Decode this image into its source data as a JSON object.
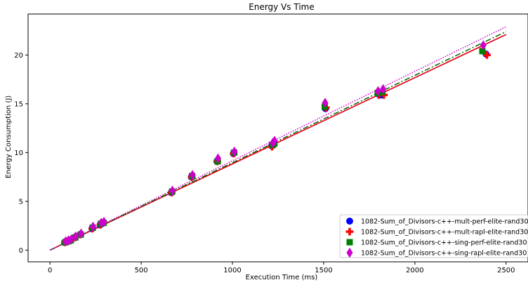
{
  "chart_data": {
    "type": "scatter",
    "title": "Energy Vs Time",
    "xlabel": "Execution Time (ms)",
    "ylabel": "Energy Consumption (J)",
    "xlim": [
      -120,
      2620
    ],
    "ylim": [
      -1.2,
      24.2
    ],
    "xticks": [
      0,
      500,
      1000,
      1500,
      2000,
      2500
    ],
    "yticks": [
      0,
      5,
      10,
      15,
      20
    ],
    "legend_position": "bottom-right",
    "grid": false,
    "series": [
      {
        "name": "1082-Sum_of_Divisors-c++-mult-perf-elite-rand30",
        "color": "#0000ff",
        "marker": "circle",
        "points": [
          [
            80,
            0.8
          ],
          [
            95,
            0.9
          ],
          [
            110,
            1.0
          ],
          [
            135,
            1.3
          ],
          [
            165,
            1.6
          ],
          [
            230,
            2.2
          ],
          [
            275,
            2.6
          ],
          [
            290,
            2.8
          ],
          [
            665,
            5.9
          ],
          [
            775,
            7.5
          ],
          [
            915,
            9.1
          ],
          [
            1005,
            9.9
          ],
          [
            1215,
            10.7
          ],
          [
            1225,
            10.9
          ],
          [
            1510,
            14.5
          ],
          [
            1800,
            16.0
          ],
          [
            1815,
            15.9
          ],
          [
            2390,
            20.1
          ]
        ],
        "fit": [
          [
            0,
            0
          ],
          [
            2500,
            22.1
          ]
        ],
        "fit_color": "#0000ff",
        "fit_dash": ""
      },
      {
        "name": "1082-Sum_of_Divisors-c++-mult-rapl-elite-rand30",
        "color": "#ff0000",
        "marker": "plus",
        "points": [
          [
            82,
            0.8
          ],
          [
            97,
            0.9
          ],
          [
            112,
            1.0
          ],
          [
            137,
            1.3
          ],
          [
            167,
            1.6
          ],
          [
            232,
            2.2
          ],
          [
            277,
            2.6
          ],
          [
            292,
            2.8
          ],
          [
            667,
            5.9
          ],
          [
            777,
            7.5
          ],
          [
            917,
            9.1
          ],
          [
            1007,
            9.9
          ],
          [
            1217,
            10.6
          ],
          [
            1227,
            10.8
          ],
          [
            1512,
            14.6
          ],
          [
            1802,
            15.9
          ],
          [
            1830,
            15.9
          ],
          [
            2395,
            20.0
          ]
        ],
        "fit": [
          [
            0,
            0
          ],
          [
            2500,
            22.1
          ]
        ],
        "fit_color": "#ff0000",
        "fit_dash": ""
      },
      {
        "name": "1082-Sum_of_Divisors-c++-sing-perf-elite-rand30",
        "color": "#008000",
        "marker": "square",
        "points": [
          [
            84,
            0.8
          ],
          [
            99,
            0.9
          ],
          [
            114,
            1.0
          ],
          [
            139,
            1.3
          ],
          [
            169,
            1.6
          ],
          [
            234,
            2.3
          ],
          [
            279,
            2.7
          ],
          [
            294,
            2.8
          ],
          [
            669,
            6.0
          ],
          [
            779,
            7.6
          ],
          [
            919,
            9.1
          ],
          [
            1009,
            10.0
          ],
          [
            1219,
            10.8
          ],
          [
            1229,
            10.9
          ],
          [
            1506,
            14.7
          ],
          [
            1796,
            16.1
          ],
          [
            1822,
            16.2
          ],
          [
            2370,
            20.4
          ]
        ],
        "fit": [
          [
            0,
            0
          ],
          [
            2500,
            22.4
          ]
        ],
        "fit_color": "#006400",
        "fit_dash": "8,3,2,3"
      },
      {
        "name": "1082-Sum_of_Divisors-c++-sing-rapl-elite-rand30",
        "color": "#cc00cc",
        "marker": "diamond",
        "points": [
          [
            86,
            0.9
          ],
          [
            101,
            1.0
          ],
          [
            116,
            1.1
          ],
          [
            141,
            1.4
          ],
          [
            171,
            1.7
          ],
          [
            236,
            2.4
          ],
          [
            281,
            2.8
          ],
          [
            296,
            2.9
          ],
          [
            671,
            6.1
          ],
          [
            781,
            7.7
          ],
          [
            921,
            9.4
          ],
          [
            1011,
            10.1
          ],
          [
            1221,
            11.0
          ],
          [
            1231,
            11.2
          ],
          [
            1508,
            15.1
          ],
          [
            1798,
            16.3
          ],
          [
            1826,
            16.5
          ],
          [
            2375,
            21.0
          ]
        ],
        "fit": [
          [
            0,
            0
          ],
          [
            2500,
            22.9
          ]
        ],
        "fit_color": "#cc00cc",
        "fit_dash": "1.5,2"
      }
    ]
  }
}
